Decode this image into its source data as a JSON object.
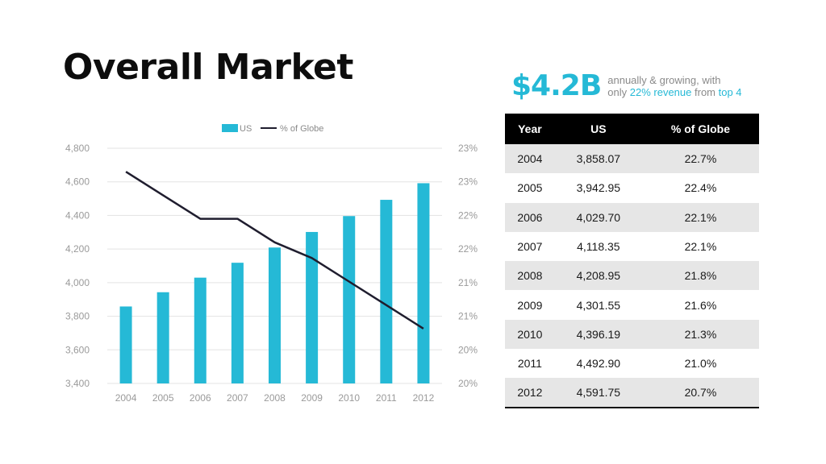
{
  "page": {
    "title": "Overall Market",
    "headline": {
      "value": "$4.2B",
      "line1": "annually & growing, with",
      "line2_prefix": "only",
      "line2_highlight": "22% revenue",
      "line2_mid": "from",
      "line2_highlight2": "top 4"
    },
    "accent_color": "#25b9d6",
    "line_color": "#1f1d2e"
  },
  "table": {
    "headers": [
      "Year",
      "US",
      "% of Globe"
    ],
    "rows": [
      [
        "2004",
        "3,858.07",
        "22.7%"
      ],
      [
        "2005",
        "3,942.95",
        "22.4%"
      ],
      [
        "2006",
        "4,029.70",
        "22.1%"
      ],
      [
        "2007",
        "4,118.35",
        "22.1%"
      ],
      [
        "2008",
        "4,208.95",
        "21.8%"
      ],
      [
        "2009",
        "4,301.55",
        "21.6%"
      ],
      [
        "2010",
        "4,396.19",
        "21.3%"
      ],
      [
        "2011",
        "4,492.90",
        "21.0%"
      ],
      [
        "2012",
        "4,591.75",
        "20.7%"
      ]
    ]
  },
  "chart_data": {
    "type": "bar",
    "title": "",
    "xlabel": "",
    "ylabel": "",
    "categories": [
      "2004",
      "2005",
      "2006",
      "2007",
      "2008",
      "2009",
      "2010",
      "2011",
      "2012"
    ],
    "series": [
      {
        "name": "US",
        "type": "bar",
        "axis": "left",
        "values": [
          3858.07,
          3942.95,
          4029.7,
          4118.35,
          4208.95,
          4301.55,
          4396.19,
          4492.9,
          4591.75
        ]
      },
      {
        "name": "% of Globe",
        "type": "line",
        "axis": "right",
        "values": [
          22.7,
          22.4,
          22.1,
          22.1,
          21.8,
          21.6,
          21.3,
          21.0,
          20.7
        ]
      }
    ],
    "ylim": [
      3400,
      4800
    ],
    "yticks": [
      "3,400",
      "3,600",
      "3,800",
      "4,000",
      "4,200",
      "4,400",
      "4,600",
      "4,800"
    ],
    "y2lim": [
      20,
      23
    ],
    "y2ticks": [
      "20%",
      "20%",
      "21%",
      "21%",
      "22%",
      "22%",
      "23%",
      "23%"
    ],
    "grid": true,
    "legend": "top-center"
  }
}
